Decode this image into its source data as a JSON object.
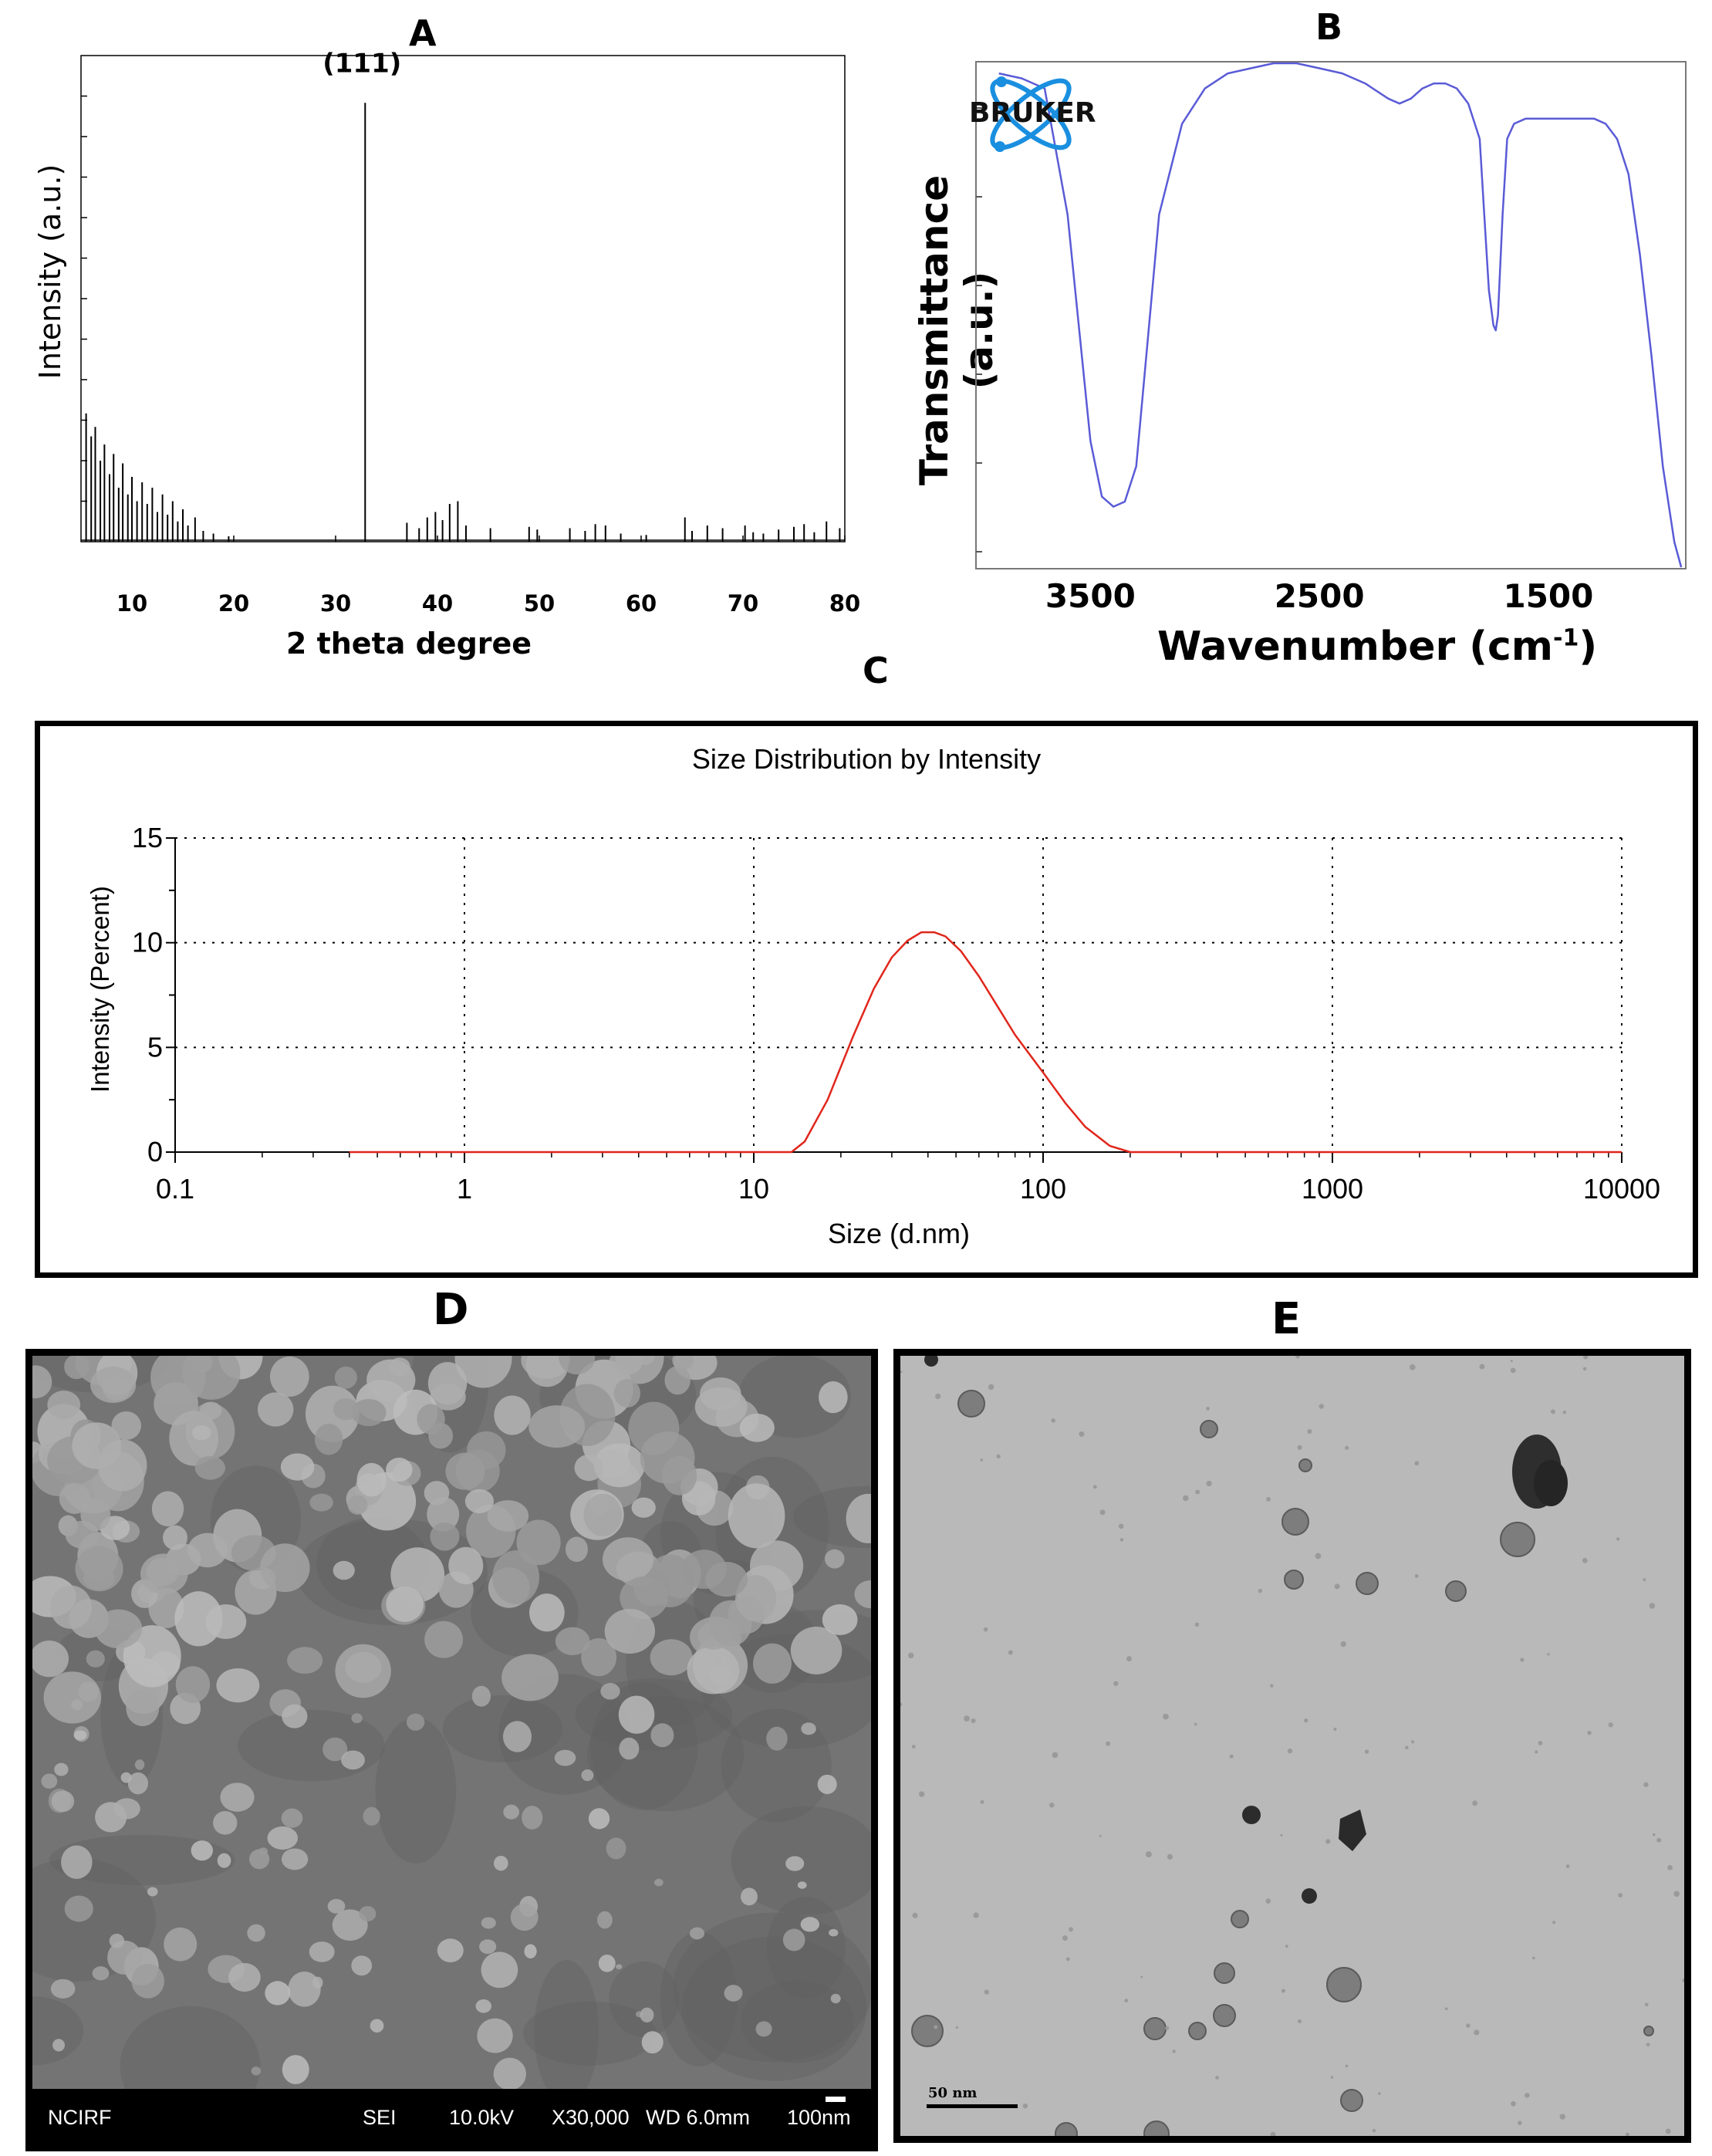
{
  "panels": {
    "A": {
      "label": "A",
      "chart_data": {
        "type": "line",
        "xlabel": "2 theta degree",
        "ylabel": "Intensity (a.u.)",
        "xlim": [
          5,
          80
        ],
        "xticks": [
          "10",
          "20",
          "30",
          "40",
          "50",
          "60",
          "70",
          "80"
        ],
        "annotation": "(111)",
        "peaks": [
          {
            "x": 5.5,
            "y": 95
          },
          {
            "x": 6.0,
            "y": 78
          },
          {
            "x": 6.4,
            "y": 85
          },
          {
            "x": 6.9,
            "y": 60
          },
          {
            "x": 7.3,
            "y": 72
          },
          {
            "x": 7.8,
            "y": 50
          },
          {
            "x": 8.2,
            "y": 65
          },
          {
            "x": 8.7,
            "y": 40
          },
          {
            "x": 9.1,
            "y": 58
          },
          {
            "x": 9.6,
            "y": 35
          },
          {
            "x": 10.0,
            "y": 48
          },
          {
            "x": 10.5,
            "y": 30
          },
          {
            "x": 11.0,
            "y": 44
          },
          {
            "x": 11.5,
            "y": 28
          },
          {
            "x": 12.0,
            "y": 40
          },
          {
            "x": 12.5,
            "y": 22
          },
          {
            "x": 13.0,
            "y": 35
          },
          {
            "x": 13.5,
            "y": 20
          },
          {
            "x": 14.0,
            "y": 30
          },
          {
            "x": 14.5,
            "y": 15
          },
          {
            "x": 15.0,
            "y": 24
          },
          {
            "x": 15.5,
            "y": 12
          },
          {
            "x": 16.2,
            "y": 18
          },
          {
            "x": 17.0,
            "y": 8
          },
          {
            "x": 18.0,
            "y": 6
          },
          {
            "x": 19.5,
            "y": 4
          },
          {
            "x": 32.9,
            "y": 325
          },
          {
            "x": 37.0,
            "y": 14
          },
          {
            "x": 38.2,
            "y": 10
          },
          {
            "x": 39.0,
            "y": 18
          },
          {
            "x": 39.8,
            "y": 22
          },
          {
            "x": 40.5,
            "y": 16
          },
          {
            "x": 41.2,
            "y": 28
          },
          {
            "x": 42.0,
            "y": 30
          },
          {
            "x": 42.8,
            "y": 12
          },
          {
            "x": 45.2,
            "y": 10
          },
          {
            "x": 49.0,
            "y": 11
          },
          {
            "x": 49.8,
            "y": 9
          },
          {
            "x": 53.0,
            "y": 10
          },
          {
            "x": 54.5,
            "y": 8
          },
          {
            "x": 55.5,
            "y": 13
          },
          {
            "x": 56.5,
            "y": 12
          },
          {
            "x": 58.0,
            "y": 6
          },
          {
            "x": 60.5,
            "y": 5
          },
          {
            "x": 64.3,
            "y": 18
          },
          {
            "x": 65.0,
            "y": 8
          },
          {
            "x": 66.5,
            "y": 12
          },
          {
            "x": 68.0,
            "y": 10
          },
          {
            "x": 70.2,
            "y": 12
          },
          {
            "x": 71.0,
            "y": 7
          },
          {
            "x": 72.0,
            "y": 6
          },
          {
            "x": 73.5,
            "y": 9
          },
          {
            "x": 75.0,
            "y": 11
          },
          {
            "x": 76.0,
            "y": 13
          },
          {
            "x": 77.0,
            "y": 7
          },
          {
            "x": 78.2,
            "y": 15
          },
          {
            "x": 79.5,
            "y": 10
          }
        ],
        "ylim": [
          0,
          360
        ]
      }
    },
    "B": {
      "label": "B",
      "logo_text": "BRUKER",
      "chart_data": {
        "type": "line",
        "xlabel": "Wavenumber (cm",
        "xlabel_sup": "-1",
        "xlabel_close": ")",
        "ylabel": "Transmittance (a.u.)",
        "xlim": [
          4000,
          900
        ],
        "xticks": [
          {
            "v": 3500,
            "label": "3500"
          },
          {
            "v": 2500,
            "label": "2500"
          },
          {
            "v": 1500,
            "label": "1500"
          }
        ],
        "ylim": [
          0,
          100
        ],
        "series": [
          {
            "color": "#5a5bd6",
            "x": [
              3900,
              3800,
              3700,
              3600,
              3500,
              3450,
              3400,
              3350,
              3300,
              3250,
              3200,
              3100,
              3000,
              2900,
              2800,
              2700,
              2600,
              2500,
              2400,
              2300,
              2200,
              2150,
              2100,
              2050,
              2000,
              1950,
              1900,
              1850,
              1800,
              1780,
              1760,
              1740,
              1730,
              1720,
              1700,
              1680,
              1650,
              1600,
              1500,
              1400,
              1300,
              1250,
              1200,
              1150,
              1100,
              1050,
              1000,
              950,
              920
            ],
            "y": [
              98,
              97,
              95,
              70,
              25,
              14,
              12,
              13,
              20,
              45,
              70,
              88,
              95,
              98,
              99,
              100,
              100,
              99,
              98,
              96,
              93,
              92,
              93,
              95,
              96,
              96,
              95,
              92,
              85,
              70,
              55,
              48,
              47,
              50,
              70,
              85,
              88,
              89,
              89,
              89,
              89,
              88,
              85,
              78,
              62,
              42,
              20,
              5,
              0
            ]
          }
        ]
      }
    },
    "C": {
      "label": "C",
      "chart_data": {
        "type": "line",
        "title": "Size Distribution by Intensity",
        "xlabel": "Size (d.nm)",
        "ylabel": "Intensity (Percent)",
        "xscale": "log",
        "xlim": [
          0.1,
          10000
        ],
        "ylim": [
          0,
          15
        ],
        "xticks": [
          "0.1",
          "1",
          "10",
          "100",
          "1000",
          "10000"
        ],
        "yticks": [
          "0",
          "5",
          "10",
          "15"
        ],
        "grid": true,
        "series": [
          {
            "color": "#e0261c",
            "x": [
              0.4,
              1,
              10,
              13.5,
              15,
              18,
              22,
              26,
              30,
              34,
              38,
              42,
              46,
              52,
              60,
              70,
              80,
              100,
              120,
              140,
              170,
              200,
              1000,
              10000
            ],
            "y": [
              0,
              0,
              0,
              0,
              0.5,
              2.5,
              5.5,
              7.8,
              9.3,
              10.1,
              10.5,
              10.5,
              10.3,
              9.6,
              8.4,
              6.9,
              5.6,
              3.8,
              2.3,
              1.2,
              0.3,
              0,
              0,
              0
            ]
          }
        ]
      }
    },
    "D": {
      "label": "D",
      "status_bar": [
        "NCIRF",
        "SEI",
        "10.0kV",
        "X30,000",
        "WD 6.0mm",
        "100nm"
      ]
    },
    "E": {
      "label": "E",
      "scale_label": "50 nm"
    }
  }
}
